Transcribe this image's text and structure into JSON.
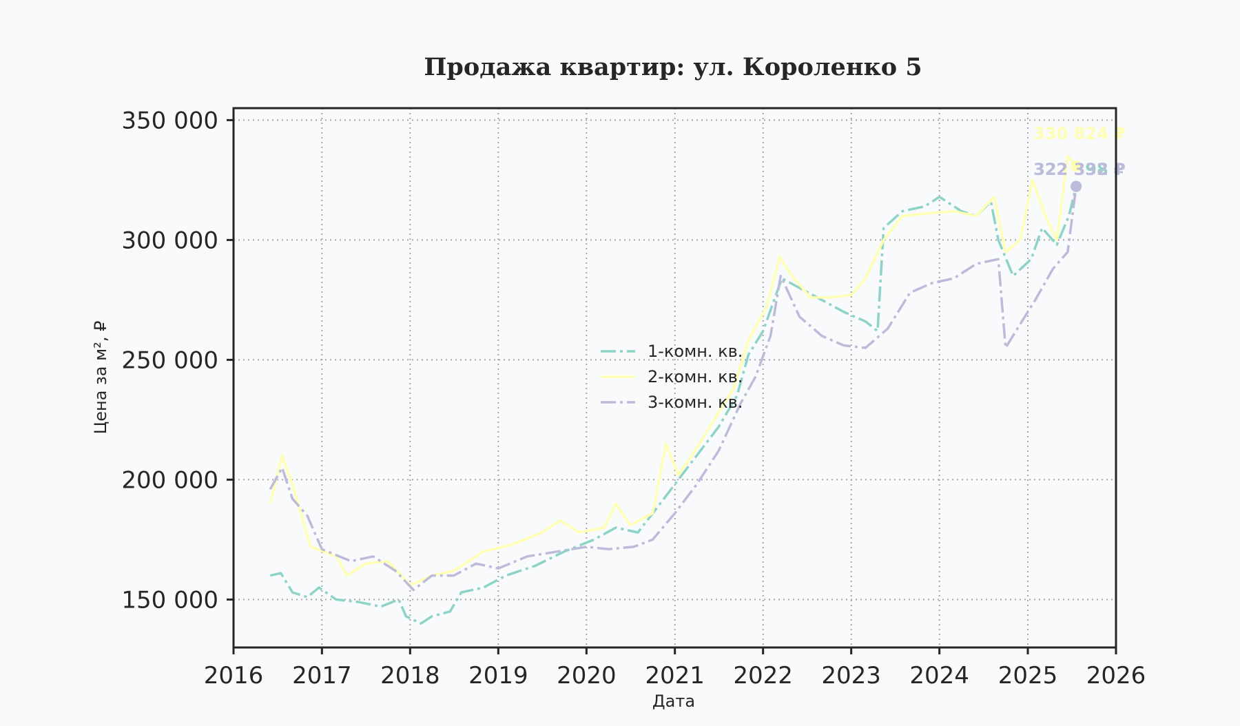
{
  "chart_data": {
    "type": "line",
    "title": "Продажа квартир: ул. Короленко 5",
    "xlabel": "Дата",
    "ylabel": "Цена за м², ₽",
    "xlim": [
      "2016-01-01",
      "2026-01-01"
    ],
    "ylim": [
      130000,
      355000
    ],
    "x_ticks": [
      "2016",
      "2017",
      "2018",
      "2019",
      "2020",
      "2021",
      "2022",
      "2023",
      "2024",
      "2025",
      "2026"
    ],
    "y_ticks": [
      150000,
      200000,
      250000,
      300000,
      350000
    ],
    "y_tick_labels": [
      "150 000",
      "200 000",
      "250 000",
      "300 000",
      "350 000"
    ],
    "grid": true,
    "legend_position": "center",
    "series": [
      {
        "name": "1-комн. кв.",
        "color": "#8dd3c7",
        "dash": "dashdot",
        "end_label": "322 398 ₽",
        "end_value": 322398,
        "points": [
          [
            "2016-06-01",
            160000
          ],
          [
            "2016-07-15",
            161000
          ],
          [
            "2016-09-01",
            153000
          ],
          [
            "2016-11-01",
            151000
          ],
          [
            "2016-12-20",
            155000
          ],
          [
            "2017-03-01",
            150000
          ],
          [
            "2017-06-01",
            149000
          ],
          [
            "2017-09-01",
            147000
          ],
          [
            "2017-11-15",
            150000
          ],
          [
            "2017-12-15",
            143000
          ],
          [
            "2018-02-15",
            140000
          ],
          [
            "2018-04-01",
            143000
          ],
          [
            "2018-06-15",
            145000
          ],
          [
            "2018-08-01",
            153000
          ],
          [
            "2018-11-01",
            155000
          ],
          [
            "2019-02-01",
            160000
          ],
          [
            "2019-06-01",
            164000
          ],
          [
            "2019-10-01",
            170000
          ],
          [
            "2020-02-01",
            175000
          ],
          [
            "2020-05-01",
            180000
          ],
          [
            "2020-08-01",
            178000
          ],
          [
            "2020-11-01",
            190000
          ],
          [
            "2021-01-15",
            200000
          ],
          [
            "2021-04-01",
            210000
          ],
          [
            "2021-07-01",
            222000
          ],
          [
            "2021-09-15",
            235000
          ],
          [
            "2021-11-01",
            252000
          ],
          [
            "2022-01-01",
            262000
          ],
          [
            "2022-03-20",
            284000
          ],
          [
            "2022-06-01",
            280000
          ],
          [
            "2022-09-01",
            275000
          ],
          [
            "2022-12-01",
            270000
          ],
          [
            "2023-03-01",
            266000
          ],
          [
            "2023-04-20",
            262000
          ],
          [
            "2023-05-15",
            305000
          ],
          [
            "2023-08-01",
            312000
          ],
          [
            "2023-11-01",
            314000
          ],
          [
            "2024-01-01",
            318000
          ],
          [
            "2024-04-01",
            312000
          ],
          [
            "2024-06-01",
            310000
          ],
          [
            "2024-08-01",
            316000
          ],
          [
            "2024-09-01",
            300000
          ],
          [
            "2024-11-01",
            285000
          ],
          [
            "2025-01-15",
            292000
          ],
          [
            "2025-03-01",
            305000
          ],
          [
            "2025-05-01",
            298000
          ],
          [
            "2025-06-20",
            310000
          ],
          [
            "2025-07-20",
            322398
          ]
        ]
      },
      {
        "name": "2-комн. кв.",
        "color": "#ffffb3",
        "dash": "solid",
        "end_label": "330 824 ₽",
        "end_value": 330824,
        "points": [
          [
            "2016-06-01",
            190000
          ],
          [
            "2016-07-20",
            210000
          ],
          [
            "2016-09-01",
            198000
          ],
          [
            "2016-11-15",
            172000
          ],
          [
            "2017-03-01",
            168000
          ],
          [
            "2017-04-15",
            160000
          ],
          [
            "2017-07-01",
            165000
          ],
          [
            "2017-10-01",
            166000
          ],
          [
            "2018-01-01",
            156000
          ],
          [
            "2018-04-01",
            160000
          ],
          [
            "2018-07-01",
            162000
          ],
          [
            "2018-11-01",
            170000
          ],
          [
            "2019-03-01",
            173000
          ],
          [
            "2019-07-01",
            178000
          ],
          [
            "2019-09-15",
            183000
          ],
          [
            "2019-12-01",
            178000
          ],
          [
            "2020-03-15",
            180000
          ],
          [
            "2020-05-01",
            190000
          ],
          [
            "2020-07-01",
            181000
          ],
          [
            "2020-10-01",
            186000
          ],
          [
            "2020-11-25",
            215000
          ],
          [
            "2021-01-15",
            202000
          ],
          [
            "2021-04-01",
            213000
          ],
          [
            "2021-07-01",
            228000
          ],
          [
            "2021-09-01",
            238000
          ],
          [
            "2021-11-01",
            258000
          ],
          [
            "2022-01-15",
            272000
          ],
          [
            "2022-03-10",
            293000
          ],
          [
            "2022-05-01",
            285000
          ],
          [
            "2022-07-15",
            276000
          ],
          [
            "2022-10-01",
            276000
          ],
          [
            "2023-01-01",
            277000
          ],
          [
            "2023-03-01",
            284000
          ],
          [
            "2023-05-15",
            300000
          ],
          [
            "2023-08-01",
            310000
          ],
          [
            "2023-11-01",
            311000
          ],
          [
            "2024-03-01",
            312000
          ],
          [
            "2024-06-01",
            310000
          ],
          [
            "2024-08-15",
            318000
          ],
          [
            "2024-10-01",
            295000
          ],
          [
            "2024-12-01",
            300000
          ],
          [
            "2025-01-20",
            325000
          ],
          [
            "2025-03-15",
            310000
          ],
          [
            "2025-05-01",
            300000
          ],
          [
            "2025-06-15",
            335000
          ],
          [
            "2025-07-20",
            330824
          ]
        ]
      },
      {
        "name": "3-комн. кв.",
        "color": "#bebada",
        "dash": "dashdot",
        "end_label": "322 332 ₽",
        "end_value": 322332,
        "points": [
          [
            "2016-06-01",
            196000
          ],
          [
            "2016-07-20",
            205000
          ],
          [
            "2016-09-01",
            192000
          ],
          [
            "2016-11-01",
            185000
          ],
          [
            "2017-01-01",
            171000
          ],
          [
            "2017-05-01",
            166000
          ],
          [
            "2017-08-01",
            168000
          ],
          [
            "2017-11-01",
            162000
          ],
          [
            "2018-01-15",
            154000
          ],
          [
            "2018-04-01",
            160000
          ],
          [
            "2018-07-01",
            160000
          ],
          [
            "2018-10-01",
            165000
          ],
          [
            "2019-01-01",
            163000
          ],
          [
            "2019-05-01",
            168000
          ],
          [
            "2019-09-01",
            170000
          ],
          [
            "2020-01-01",
            172000
          ],
          [
            "2020-04-01",
            171000
          ],
          [
            "2020-07-15",
            172000
          ],
          [
            "2020-10-01",
            175000
          ],
          [
            "2021-01-01",
            186000
          ],
          [
            "2021-04-01",
            198000
          ],
          [
            "2021-07-01",
            212000
          ],
          [
            "2021-10-01",
            232000
          ],
          [
            "2021-12-01",
            243000
          ],
          [
            "2022-02-01",
            260000
          ],
          [
            "2022-03-15",
            285000
          ],
          [
            "2022-06-01",
            268000
          ],
          [
            "2022-09-01",
            260000
          ],
          [
            "2022-12-01",
            256000
          ],
          [
            "2023-03-01",
            255000
          ],
          [
            "2023-06-01",
            263000
          ],
          [
            "2023-09-01",
            278000
          ],
          [
            "2023-12-01",
            282000
          ],
          [
            "2024-03-01",
            284000
          ],
          [
            "2024-06-01",
            290000
          ],
          [
            "2024-09-01",
            292000
          ],
          [
            "2024-10-01",
            255000
          ],
          [
            "2024-12-01",
            265000
          ],
          [
            "2025-02-01",
            275000
          ],
          [
            "2025-04-15",
            288000
          ],
          [
            "2025-06-15",
            295000
          ],
          [
            "2025-07-20",
            322332
          ]
        ]
      }
    ]
  }
}
